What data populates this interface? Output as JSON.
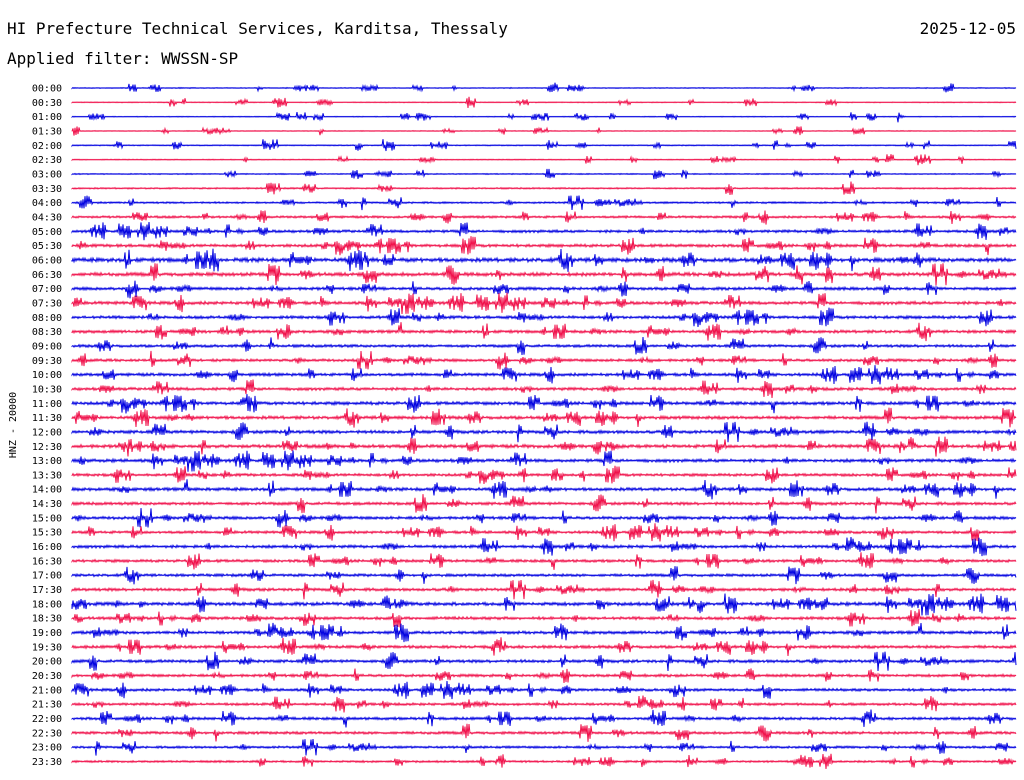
{
  "header": {
    "title": "HI Prefecture Technical Services, Karditsa, Thessaly",
    "date": "2025-12-05",
    "filter_label": "Applied filter:",
    "filter_value": "WWSSN-SP"
  },
  "colors": {
    "odd_trace": "#0000e0",
    "even_trace": "#f0104a",
    "background": "#ffffff",
    "text": "#000000"
  },
  "chart_data": {
    "type": "line",
    "title": "HI Prefecture Technical Services, Karditsa, Thessaly",
    "ylabel": "HNZ - 20000",
    "xlabel": "",
    "categories": [
      "00:00",
      "00:30",
      "01:00",
      "01:30",
      "02:00",
      "02:30",
      "03:00",
      "03:30",
      "04:00",
      "04:30",
      "05:00",
      "05:30",
      "06:00",
      "06:30",
      "07:00",
      "07:30",
      "08:00",
      "08:30",
      "09:00",
      "09:30",
      "10:00",
      "10:30",
      "11:00",
      "11:30",
      "12:00",
      "12:30",
      "13:00",
      "13:30",
      "14:00",
      "14:30",
      "15:00",
      "15:30",
      "16:00",
      "16:30",
      "17:00",
      "17:30",
      "18:00",
      "18:30",
      "19:00",
      "19:30",
      "20:00",
      "20:30",
      "21:00",
      "21:30",
      "22:00",
      "22:30",
      "23:00",
      "23:30"
    ],
    "activity": [
      0.08,
      0.06,
      0.05,
      0.07,
      0.12,
      0.08,
      0.1,
      0.2,
      0.25,
      0.35,
      0.45,
      0.5,
      0.75,
      0.65,
      0.5,
      0.55,
      0.5,
      0.5,
      0.45,
      0.45,
      0.5,
      0.5,
      0.55,
      0.55,
      0.55,
      0.6,
      0.55,
      0.45,
      0.55,
      0.5,
      0.5,
      0.45,
      0.5,
      0.45,
      0.45,
      0.5,
      0.6,
      0.5,
      0.5,
      0.5,
      0.5,
      0.45,
      0.45,
      0.4,
      0.45,
      0.45,
      0.35,
      0.3
    ],
    "grid": false,
    "legend": "none"
  }
}
